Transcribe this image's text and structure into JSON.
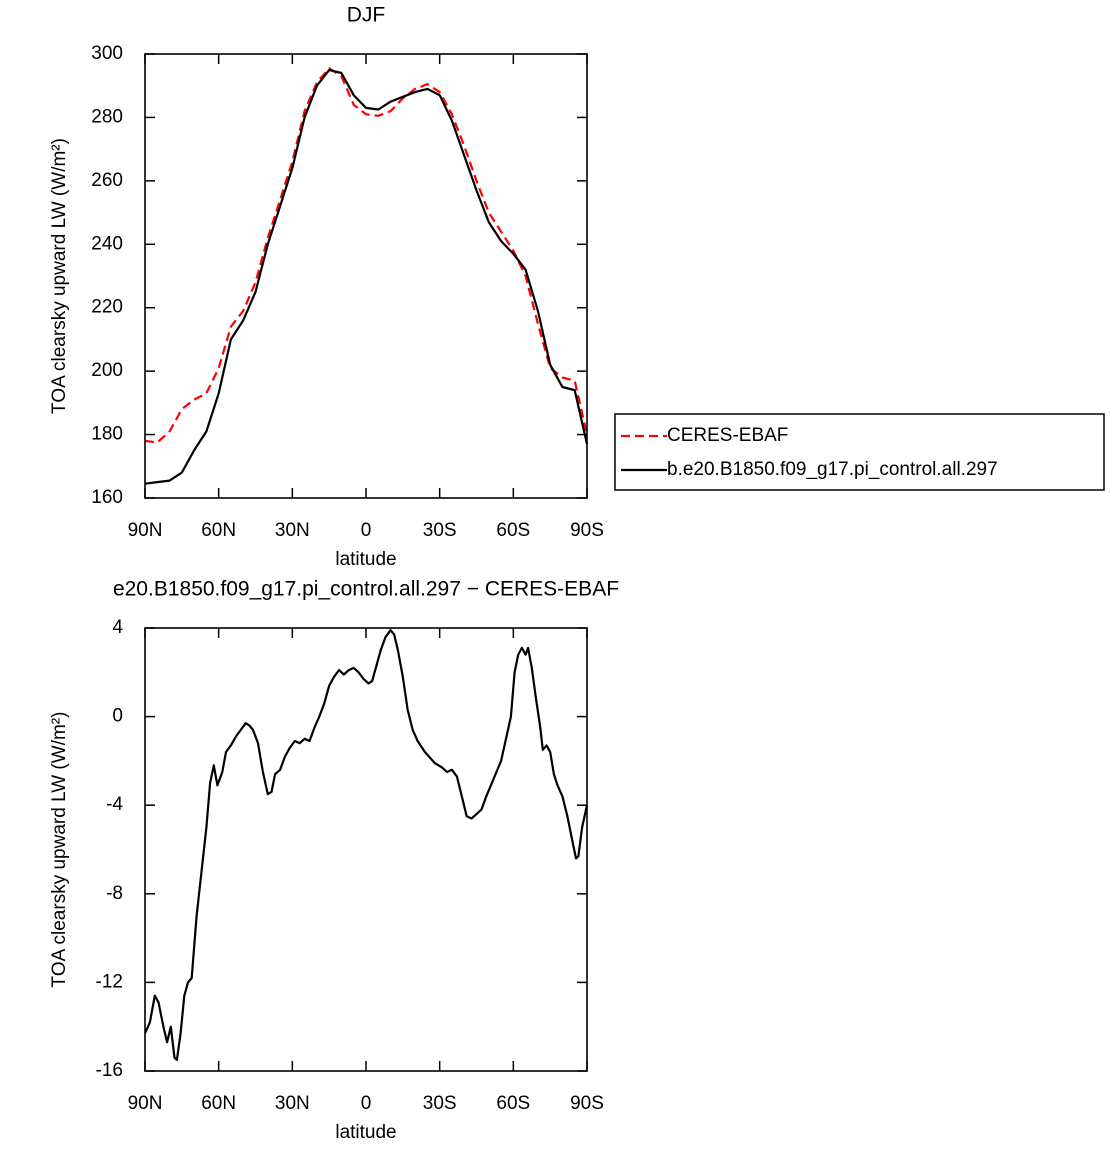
{
  "chart_data": [
    {
      "type": "line",
      "title": "DJF",
      "xlabel": "latitude",
      "ylabel": "TOA clearsky upward LW (W/m²)",
      "x": [
        90,
        85,
        80,
        75,
        70,
        65,
        60,
        55,
        50,
        45,
        40,
        35,
        30,
        25,
        20,
        15,
        10,
        5,
        0,
        -5,
        -10,
        -15,
        -20,
        -25,
        -30,
        -35,
        -40,
        -45,
        -50,
        -55,
        -60,
        -65,
        -70,
        -75,
        -80,
        -85,
        -90
      ],
      "series": [
        {
          "name": "CERES-EBAF",
          "color": "#ff0000",
          "dash": true,
          "values": [
            178,
            177.5,
            181,
            188,
            191,
            193,
            201,
            214,
            219,
            228,
            242,
            254,
            266,
            282,
            291,
            295.5,
            293,
            284,
            281,
            280.5,
            282,
            286,
            289,
            290.5,
            288,
            281,
            271,
            260,
            250,
            244,
            238,
            230,
            215,
            201,
            198,
            197,
            180
          ]
        },
        {
          "name": "b.e20.B1850.f09_g17.pi_control.all.297",
          "color": "#000000",
          "dash": false,
          "values": [
            164.5,
            165,
            165.5,
            168,
            175,
            181,
            193,
            210,
            216,
            225,
            240,
            252,
            264,
            280,
            290,
            295,
            294,
            287,
            283,
            282.5,
            285,
            286.5,
            288,
            289,
            287,
            279,
            268,
            257,
            247,
            241,
            237,
            232,
            219,
            202,
            195,
            194,
            177
          ]
        }
      ],
      "xlim": [
        90,
        -90
      ],
      "xticks": [
        {
          "value": 90,
          "label": "90N"
        },
        {
          "value": 60,
          "label": "60N"
        },
        {
          "value": 30,
          "label": "30N"
        },
        0,
        {
          "value": -30,
          "label": "30S"
        },
        {
          "value": -60,
          "label": "60S"
        },
        {
          "value": -90,
          "label": "90S"
        }
      ],
      "ylim": [
        160,
        300
      ],
      "yticks": [
        160,
        180,
        200,
        220,
        240,
        260,
        280,
        300
      ],
      "legend": "right"
    },
    {
      "type": "line",
      "title": "e20.B1850.f09_g17.pi_control.all.297 − CERES-EBAF",
      "xlabel": "latitude",
      "ylabel": "TOA clearsky upward LW (W/m²)",
      "color": "#000000",
      "x": [
        90,
        88,
        86,
        84.5,
        82.5,
        81,
        79.5,
        78,
        77,
        75.5,
        74,
        72.5,
        71,
        69,
        67,
        65,
        63.5,
        62,
        60.5,
        58.5,
        57,
        55,
        53,
        51,
        49,
        47.5,
        46,
        44,
        42,
        40,
        38.5,
        37,
        35,
        33,
        31,
        29,
        27,
        25,
        23,
        21,
        19,
        17,
        15,
        13,
        11,
        9,
        7,
        5,
        3,
        1,
        -1,
        -2.5,
        -4,
        -6,
        -8,
        -10,
        -11.5,
        -13,
        -15,
        -17,
        -19,
        -21,
        -24,
        -28,
        -31,
        -33,
        -35,
        -37,
        -39,
        -41,
        -43,
        -45,
        -47,
        -49,
        -52,
        -55,
        -57,
        -59,
        -60.5,
        -62,
        -63.5,
        -65,
        -66,
        -67.5,
        -69,
        -71,
        -72,
        -73.5,
        -75,
        -76.5,
        -78,
        -80,
        -82,
        -84,
        -85.5,
        -86.5,
        -88,
        -90
      ],
      "values": [
        -14.3,
        -13.8,
        -12.6,
        -12.9,
        -14.0,
        -14.7,
        -14.0,
        -15.4,
        -15.5,
        -14.3,
        -12.6,
        -12.0,
        -11.8,
        -9.0,
        -7.0,
        -5.0,
        -3.0,
        -2.2,
        -3.1,
        -2.5,
        -1.6,
        -1.3,
        -0.9,
        -0.6,
        -0.3,
        -0.4,
        -0.6,
        -1.2,
        -2.5,
        -3.5,
        -3.4,
        -2.6,
        -2.4,
        -1.8,
        -1.4,
        -1.1,
        -1.2,
        -1.0,
        -1.1,
        -0.5,
        0.0,
        0.6,
        1.4,
        1.8,
        2.1,
        1.9,
        2.1,
        2.2,
        2.0,
        1.7,
        1.5,
        1.6,
        2.2,
        3.0,
        3.6,
        3.9,
        3.7,
        3.0,
        1.8,
        0.3,
        -0.6,
        -1.1,
        -1.6,
        -2.1,
        -2.3,
        -2.5,
        -2.4,
        -2.7,
        -3.6,
        -4.5,
        -4.6,
        -4.4,
        -4.2,
        -3.6,
        -2.8,
        -2.0,
        -1.0,
        0.0,
        2.0,
        2.8,
        3.1,
        2.8,
        3.1,
        2.2,
        1.0,
        -0.5,
        -1.5,
        -1.3,
        -1.6,
        -2.6,
        -3.1,
        -3.6,
        -4.5,
        -5.6,
        -6.4,
        -6.3,
        -5.0,
        -4.0
      ],
      "xlim": [
        90,
        -90
      ],
      "xticks": [
        {
          "value": 90,
          "label": "90N"
        },
        {
          "value": 60,
          "label": "60N"
        },
        {
          "value": 30,
          "label": "30N"
        },
        0,
        {
          "value": -30,
          "label": "30S"
        },
        {
          "value": -60,
          "label": "60S"
        },
        {
          "value": -90,
          "label": "90S"
        }
      ],
      "ylim": [
        -16,
        4
      ],
      "yticks": [
        -16,
        -12,
        -8,
        -4,
        0,
        4
      ]
    }
  ]
}
